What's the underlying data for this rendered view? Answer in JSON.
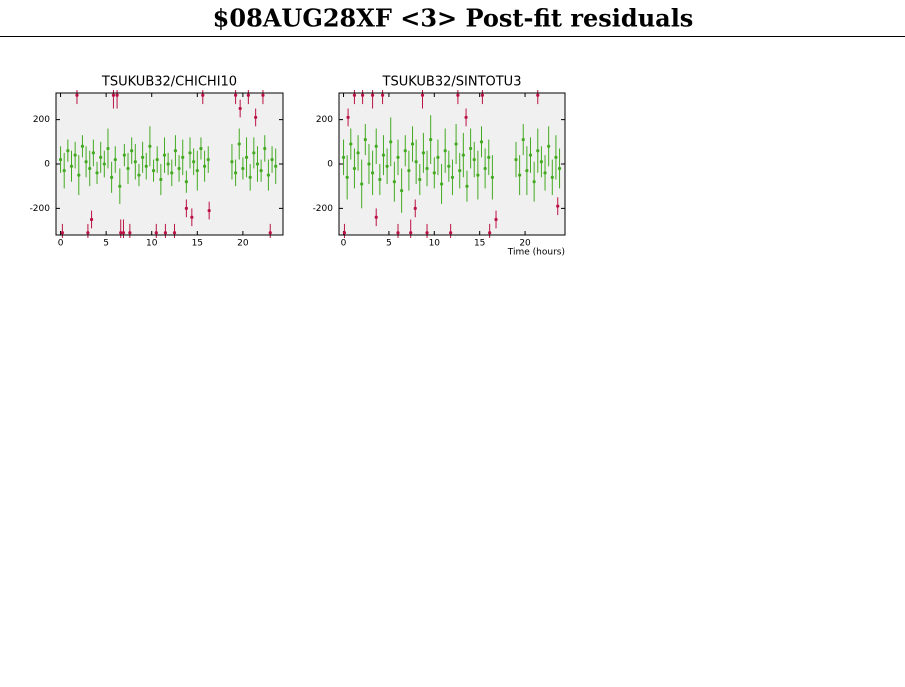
{
  "title": "$08AUG28XF <3> Post-fit residuals",
  "chart_data": [
    {
      "type": "scatter",
      "title": "TSUKUB32/CHICHI10",
      "xlim": [
        -0.5,
        24.4
      ],
      "ylim": [
        -320,
        320
      ],
      "xticks": [
        0,
        5,
        10,
        15,
        20
      ],
      "yticks": [
        -200,
        0,
        200
      ],
      "series": [
        {
          "color": "#44aa22",
          "x": [
            0,
            0.4,
            0.8,
            1.2,
            1.6,
            2.0,
            2.4,
            2.8,
            3.2,
            3.6,
            4.0,
            4.4,
            4.8,
            5.2,
            5.6,
            6.0,
            6.5,
            7.0,
            7.4,
            7.8,
            8.2,
            8.6,
            9.0,
            9.4,
            9.8,
            10.2,
            10.6,
            11.0,
            11.4,
            11.8,
            12.2,
            12.6,
            13.0,
            13.4,
            13.8,
            14.2,
            14.6,
            15.0,
            15.4,
            15.8,
            16.2,
            18.8,
            19.2,
            19.6,
            20.0,
            20.4,
            20.8,
            21.2,
            21.6,
            22.0,
            22.4,
            22.8,
            23.2,
            23.6
          ],
          "values": [
            20,
            -30,
            60,
            -10,
            40,
            -50,
            80,
            10,
            -20,
            50,
            -40,
            30,
            0,
            70,
            -60,
            20,
            -100,
            40,
            -20,
            60,
            10,
            -50,
            30,
            -10,
            80,
            -30,
            20,
            -70,
            40,
            0,
            -40,
            60,
            -20,
            30,
            -80,
            50,
            10,
            -30,
            70,
            -10,
            20,
            10,
            -40,
            90,
            -20,
            30,
            -60,
            50,
            0,
            -30,
            70,
            -50,
            20,
            -10
          ],
          "errors": [
            60,
            80,
            50,
            70,
            60,
            90,
            50,
            70,
            80,
            60,
            50,
            70,
            60,
            90,
            70,
            60,
            80,
            50,
            70,
            60,
            80,
            50,
            70,
            60,
            90,
            50,
            60,
            70,
            80,
            50,
            60,
            70,
            60,
            80,
            50,
            70,
            60,
            90,
            50,
            70,
            60,
            80,
            60,
            70,
            50,
            90,
            60,
            70,
            80,
            50,
            60,
            70,
            60,
            80
          ]
        },
        {
          "color": "#bb1144",
          "x": [
            0.2,
            1.8,
            3.0,
            3.4,
            5.8,
            6.2,
            6.6,
            6.9,
            7.6,
            10.5,
            11.5,
            12.5,
            13.8,
            14.4,
            15.6,
            16.3,
            19.2,
            19.7,
            20.6,
            21.4,
            22.2,
            23.0
          ],
          "values": [
            -310,
            310,
            -310,
            -250,
            310,
            310,
            -310,
            -310,
            -310,
            -310,
            -310,
            -310,
            -200,
            -240,
            310,
            -210,
            310,
            250,
            310,
            210,
            310,
            -310
          ],
          "errors": [
            40,
            40,
            40,
            40,
            60,
            60,
            60,
            60,
            40,
            40,
            40,
            40,
            40,
            40,
            40,
            40,
            40,
            40,
            40,
            40,
            40,
            40
          ]
        }
      ]
    },
    {
      "type": "scatter",
      "title": "TSUKUB32/SINTOTU3",
      "xlabel": "Time (hours)",
      "xlim": [
        -0.5,
        24.4
      ],
      "ylim": [
        -320,
        320
      ],
      "xticks": [
        0,
        5,
        10,
        15,
        20
      ],
      "yticks": [
        -200,
        0,
        200
      ],
      "series": [
        {
          "color": "#44aa22",
          "x": [
            0,
            0.4,
            0.8,
            1.2,
            1.6,
            2.0,
            2.4,
            2.8,
            3.2,
            3.6,
            4.0,
            4.4,
            4.8,
            5.2,
            5.6,
            6.0,
            6.4,
            6.8,
            7.2,
            7.6,
            8.0,
            8.4,
            8.8,
            9.2,
            9.6,
            10.0,
            10.4,
            10.8,
            11.2,
            11.6,
            12.0,
            12.4,
            12.8,
            13.2,
            13.6,
            14.0,
            14.4,
            14.8,
            15.2,
            15.6,
            16.0,
            16.4,
            19.0,
            19.4,
            19.8,
            20.2,
            20.6,
            21.0,
            21.4,
            21.8,
            22.2,
            22.6,
            23.0,
            23.4,
            23.8
          ],
          "values": [
            30,
            -60,
            90,
            -20,
            50,
            -90,
            110,
            0,
            -40,
            80,
            -70,
            40,
            -10,
            100,
            -80,
            30,
            -120,
            60,
            -30,
            90,
            10,
            -70,
            50,
            -20,
            110,
            -40,
            30,
            -90,
            60,
            -10,
            -60,
            90,
            -30,
            40,
            -100,
            70,
            20,
            -50,
            100,
            -20,
            30,
            -60,
            20,
            -50,
            110,
            -30,
            40,
            -80,
            60,
            10,
            -40,
            80,
            -60,
            30,
            -20
          ],
          "errors": [
            80,
            100,
            70,
            90,
            80,
            110,
            70,
            90,
            100,
            80,
            70,
            90,
            80,
            110,
            90,
            80,
            100,
            70,
            90,
            80,
            100,
            70,
            90,
            80,
            110,
            70,
            80,
            90,
            100,
            70,
            80,
            90,
            80,
            100,
            70,
            90,
            80,
            110,
            70,
            90,
            80,
            100,
            80,
            90,
            70,
            110,
            80,
            90,
            100,
            70,
            80,
            90,
            80,
            100,
            90
          ]
        },
        {
          "color": "#bb1144",
          "x": [
            0.1,
            0.5,
            1.2,
            2.1,
            3.2,
            3.6,
            4.3,
            6.0,
            7.4,
            7.9,
            8.7,
            9.2,
            11.8,
            12.6,
            13.5,
            15.3,
            16.1,
            16.8,
            21.4,
            23.6
          ],
          "values": [
            -310,
            210,
            310,
            310,
            310,
            -240,
            310,
            -310,
            -310,
            -200,
            310,
            -310,
            -310,
            310,
            210,
            310,
            -310,
            -250,
            310,
            -190
          ],
          "errors": [
            40,
            40,
            40,
            40,
            60,
            40,
            40,
            40,
            60,
            40,
            60,
            40,
            40,
            40,
            40,
            40,
            40,
            40,
            40,
            40
          ]
        }
      ]
    }
  ]
}
